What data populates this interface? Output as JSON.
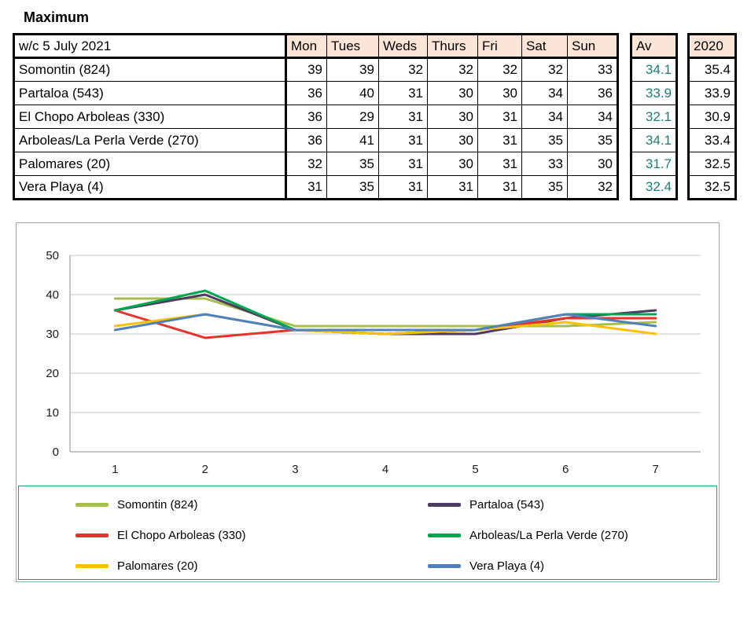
{
  "title": "Maximum",
  "table": {
    "week_label": "w/c 5 July 2021",
    "day_headers": [
      "Mon",
      "Tues",
      "Weds",
      "Thurs",
      "Fri",
      "Sat",
      "Sun"
    ],
    "av_header": "Av",
    "year_header": "2020",
    "rows": [
      {
        "name": "Somontin (824)",
        "values": [
          39,
          39,
          32,
          32,
          32,
          32,
          33
        ],
        "av": "34.1",
        "y2020": "35.4"
      },
      {
        "name": "Partaloa (543)",
        "values": [
          36,
          40,
          31,
          30,
          30,
          34,
          36
        ],
        "av": "33.9",
        "y2020": "33.9"
      },
      {
        "name": "El Chopo  Arboleas (330)",
        "values": [
          36,
          29,
          31,
          30,
          31,
          34,
          34
        ],
        "av": "32.1",
        "y2020": "30.9"
      },
      {
        "name": "Arboleas/La Perla Verde (270)",
        "values": [
          36,
          41,
          31,
          30,
          31,
          35,
          35
        ],
        "av": "34.1",
        "y2020": "33.4"
      },
      {
        "name": "Palomares (20)",
        "values": [
          32,
          35,
          31,
          30,
          31,
          33,
          30
        ],
        "av": "31.7",
        "y2020": "32.5"
      },
      {
        "name": "Vera Playa (4)",
        "values": [
          31,
          35,
          31,
          31,
          31,
          35,
          32
        ],
        "av": "32.4",
        "y2020": "32.5"
      }
    ]
  },
  "chart_data": {
    "type": "line",
    "x": [
      1,
      2,
      3,
      4,
      5,
      6,
      7
    ],
    "xticks": [
      "1",
      "2",
      "3",
      "4",
      "5",
      "6",
      "7"
    ],
    "ylim": [
      0,
      50
    ],
    "yticks": [
      0,
      10,
      20,
      30,
      40,
      50
    ],
    "grid": true,
    "legend_position": "bottom",
    "series": [
      {
        "name": "Somontin (824)",
        "color": "#A6BE4B",
        "values": [
          39,
          39,
          32,
          32,
          32,
          32,
          33
        ]
      },
      {
        "name": "Partaloa (543)",
        "color": "#4D3B62",
        "values": [
          36,
          40,
          31,
          30,
          30,
          34,
          36
        ]
      },
      {
        "name": "El Chopo  Arboleas (330)",
        "color": "#E8312B",
        "values": [
          36,
          29,
          31,
          30,
          31,
          34,
          34
        ]
      },
      {
        "name": "Arboleas/La Perla Verde (270)",
        "color": "#00A651",
        "values": [
          36,
          41,
          31,
          30,
          31,
          35,
          35
        ]
      },
      {
        "name": "Palomares (20)",
        "color": "#FFC000",
        "values": [
          32,
          35,
          31,
          30,
          31,
          33,
          30
        ]
      },
      {
        "name": "Vera Playa (4)",
        "color": "#4F81BD",
        "values": [
          31,
          35,
          31,
          31,
          31,
          35,
          32
        ]
      }
    ]
  },
  "colors": {
    "header_fill": "#FBE5D6",
    "av_text": "#1F7D72",
    "table_border": "#000000",
    "chart_border": "#A6A6A6",
    "legend_border": "#2E9E63",
    "gridline": "#C6C6C6",
    "axis": "#8C8C8C",
    "axis_text": "#1A1A1A"
  }
}
